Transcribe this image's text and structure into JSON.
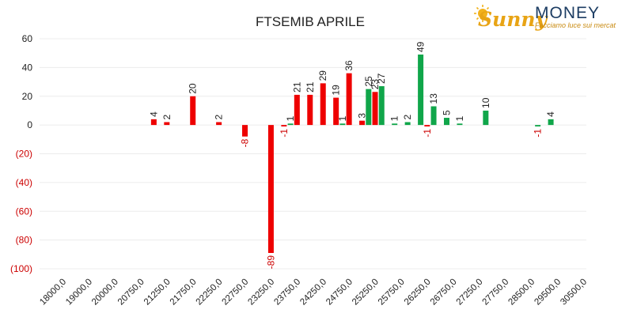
{
  "logo": {
    "part1": "Sunny",
    "part2": "MONEY",
    "tagline": "Facciamo luce sui mercati"
  },
  "colors": {
    "red": "#ee0000",
    "green": "#10a64a",
    "grid": "#ececec",
    "axis_text": "#222222",
    "negative_text": "#cc0000"
  },
  "chart_data": {
    "type": "bar",
    "title": "FTSEMIB APRILE",
    "ylim": [
      -100,
      60
    ],
    "yticks": [
      60,
      40,
      20,
      0,
      -20,
      -40,
      -60,
      -80,
      -100
    ],
    "ytick_labels": [
      "60",
      "40",
      "20",
      "0",
      "(20)",
      "(40)",
      "(60)",
      "(80)",
      "(100)"
    ],
    "grid": true,
    "categories": [
      "18000,0",
      "19000,0",
      "20000,0",
      "20750,0",
      "21250,0",
      "21750,0",
      "22250,0",
      "22750,0",
      "23250,0",
      "23750,0",
      "24250,0",
      "24750,0",
      "25250,0",
      "25750,0",
      "26250,0",
      "26750,0",
      "27250,0",
      "27750,0",
      "28500,0",
      "29500,0",
      "30500,0"
    ],
    "bars": [
      {
        "pos": 3.75,
        "value": 4,
        "label": "4",
        "color": "red"
      },
      {
        "pos": 4.25,
        "value": 2,
        "label": "2",
        "color": "red"
      },
      {
        "pos": 5.25,
        "value": 20,
        "label": "20",
        "color": "red"
      },
      {
        "pos": 6.25,
        "value": 2,
        "label": "2",
        "color": "red"
      },
      {
        "pos": 7.25,
        "value": -8,
        "label": "-8",
        "color": "red"
      },
      {
        "pos": 8.25,
        "value": -89,
        "label": "-89",
        "color": "red"
      },
      {
        "pos": 8.75,
        "value": -1,
        "label": "-1",
        "color": "red"
      },
      {
        "pos": 9.0,
        "value": 1,
        "label": "1",
        "color": "green"
      },
      {
        "pos": 9.25,
        "value": 21,
        "label": "21",
        "color": "red"
      },
      {
        "pos": 9.75,
        "value": 21,
        "label": "21",
        "color": "red"
      },
      {
        "pos": 10.25,
        "value": 29,
        "label": "29",
        "color": "red"
      },
      {
        "pos": 10.75,
        "value": 19,
        "label": "19",
        "color": "red"
      },
      {
        "pos": 11.0,
        "value": 1,
        "label": "1",
        "color": "green"
      },
      {
        "pos": 11.25,
        "value": 36,
        "label": "36",
        "color": "red"
      },
      {
        "pos": 11.75,
        "value": 3,
        "label": "3",
        "color": "red"
      },
      {
        "pos": 12.0,
        "value": 25,
        "label": "25",
        "color": "green"
      },
      {
        "pos": 12.25,
        "value": 23,
        "label": "23",
        "color": "red"
      },
      {
        "pos": 12.5,
        "value": 27,
        "label": "27",
        "color": "green"
      },
      {
        "pos": 13.0,
        "value": 1,
        "label": "1",
        "color": "green"
      },
      {
        "pos": 13.5,
        "value": 2,
        "label": "2",
        "color": "green"
      },
      {
        "pos": 14.0,
        "value": 49,
        "label": "49",
        "color": "green"
      },
      {
        "pos": 14.25,
        "value": -1,
        "label": "-1",
        "color": "red"
      },
      {
        "pos": 14.5,
        "value": 13,
        "label": "13",
        "color": "green"
      },
      {
        "pos": 15.0,
        "value": 5,
        "label": "5",
        "color": "green"
      },
      {
        "pos": 15.5,
        "value": 1,
        "label": "1",
        "color": "green"
      },
      {
        "pos": 16.5,
        "value": 10,
        "label": "10",
        "color": "green"
      },
      {
        "pos": 18.5,
        "value": -1,
        "label": "-1",
        "color": "green"
      },
      {
        "pos": 19.0,
        "value": 4,
        "label": "4",
        "color": "green"
      }
    ]
  }
}
